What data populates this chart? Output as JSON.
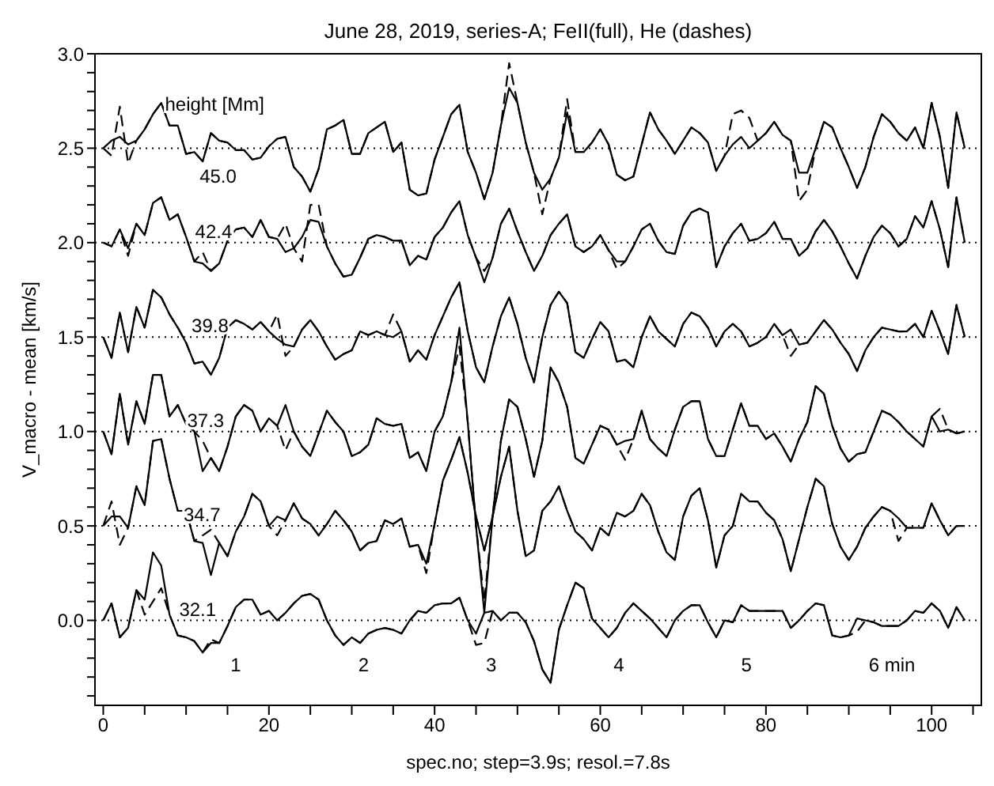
{
  "chart_data": {
    "type": "line",
    "title": "June 28, 2019, series-A; FeII(full), He (dashes)",
    "xlabel": "spec.no; step=3.9s; resol.=7.8s",
    "ylabel": "V_macro - mean [km/s]",
    "xlim": [
      -1,
      106
    ],
    "ylim": [
      -0.45,
      3.0
    ],
    "xticks": [
      0,
      {
        "value": 5,
        "label": null
      },
      {
        "value": 10,
        "label": null
      },
      {
        "value": 15,
        "label": null
      },
      20,
      {
        "value": 25,
        "label": null
      },
      {
        "value": 30,
        "label": null
      },
      {
        "value": 35,
        "label": null
      },
      40,
      {
        "value": 45,
        "label": null
      },
      {
        "value": 50,
        "label": null
      },
      {
        "value": 55,
        "label": null
      },
      60,
      {
        "value": 65,
        "label": null
      },
      {
        "value": 70,
        "label": null
      },
      {
        "value": 75,
        "label": null
      },
      80,
      {
        "value": 85,
        "label": null
      },
      {
        "value": 90,
        "label": null
      },
      {
        "value": 95,
        "label": null
      },
      100,
      {
        "value": 105,
        "label": null
      }
    ],
    "yticks": [
      {
        "value": -0.4,
        "label": null
      },
      {
        "value": -0.3,
        "label": null
      },
      {
        "value": -0.2,
        "label": null
      },
      {
        "value": -0.1,
        "label": null
      },
      {
        "value": 0,
        "label": "0.0"
      },
      {
        "value": 0.1,
        "label": null
      },
      {
        "value": 0.2,
        "label": null
      },
      {
        "value": 0.3,
        "label": null
      },
      {
        "value": 0.4,
        "label": null
      },
      {
        "value": 0.5,
        "label": "0.5"
      },
      {
        "value": 0.6,
        "label": null
      },
      {
        "value": 0.7,
        "label": null
      },
      {
        "value": 0.8,
        "label": null
      },
      {
        "value": 0.9,
        "label": null
      },
      {
        "value": 1,
        "label": "1.0"
      },
      {
        "value": 1.1,
        "label": null
      },
      {
        "value": 1.2,
        "label": null
      },
      {
        "value": 1.3,
        "label": null
      },
      {
        "value": 1.4,
        "label": null
      },
      {
        "value": 1.5,
        "label": "1.5"
      },
      {
        "value": 1.6,
        "label": null
      },
      {
        "value": 1.7,
        "label": null
      },
      {
        "value": 1.8,
        "label": null
      },
      {
        "value": 1.9,
        "label": null
      },
      {
        "value": 2,
        "label": "2.0"
      },
      {
        "value": 2.1,
        "label": null
      },
      {
        "value": 2.2,
        "label": null
      },
      {
        "value": 2.3,
        "label": null
      },
      {
        "value": 2.4,
        "label": null
      },
      {
        "value": 2.5,
        "label": "2.5"
      },
      {
        "value": 2.6,
        "label": null
      },
      {
        "value": 2.7,
        "label": null
      },
      {
        "value": 2.8,
        "label": null
      },
      {
        "value": 2.9,
        "label": null
      },
      {
        "value": 3,
        "label": "3.0"
      }
    ],
    "x": [
      0,
      1,
      2,
      3,
      4,
      5,
      6,
      7,
      8,
      9,
      10,
      11,
      12,
      13,
      14,
      15,
      16,
      17,
      18,
      19,
      20,
      21,
      22,
      23,
      24,
      25,
      26,
      27,
      28,
      29,
      30,
      31,
      32,
      33,
      34,
      35,
      36,
      37,
      38,
      39,
      40,
      41,
      42,
      43,
      44,
      45,
      46,
      47,
      48,
      49,
      50,
      51,
      52,
      53,
      54,
      55,
      56,
      57,
      58,
      59,
      60,
      61,
      62,
      63,
      64,
      65,
      66,
      67,
      68,
      69,
      70,
      71,
      72,
      73,
      74,
      75,
      76,
      77,
      78,
      79,
      80,
      81,
      82,
      83,
      84,
      85,
      86,
      87,
      88,
      89,
      90,
      91,
      92,
      93,
      94,
      95,
      96,
      97,
      98,
      99,
      100,
      101,
      102,
      103,
      104
    ],
    "series": [
      {
        "color": "#000000",
        "line_style": "solid",
        "values": [
          2.5,
          2.54,
          2.56,
          2.52,
          2.54,
          2.6,
          2.68,
          2.74,
          2.62,
          2.62,
          2.47,
          2.48,
          2.43,
          2.58,
          2.54,
          2.53,
          2.49,
          2.49,
          2.44,
          2.45,
          2.51,
          2.55,
          2.56,
          2.4,
          2.35,
          2.27,
          2.39,
          2.6,
          2.62,
          2.65,
          2.47,
          2.47,
          2.58,
          2.61,
          2.64,
          2.48,
          2.53,
          2.28,
          2.25,
          2.26,
          2.44,
          2.56,
          2.68,
          2.73,
          2.48,
          2.37,
          2.23,
          2.37,
          2.62,
          2.82,
          2.74,
          2.53,
          2.37,
          2.28,
          2.34,
          2.45,
          2.69,
          2.48,
          2.48,
          2.53,
          2.6,
          2.52,
          2.36,
          2.33,
          2.35,
          2.52,
          2.69,
          2.6,
          2.54,
          2.47,
          2.54,
          2.61,
          2.58,
          2.53,
          2.38,
          2.46,
          2.52,
          2.56,
          2.5,
          2.54,
          2.58,
          2.64,
          2.57,
          2.54,
          2.37,
          2.37,
          2.5,
          2.64,
          2.61,
          2.5,
          2.4,
          2.29,
          2.4,
          2.56,
          2.68,
          2.64,
          2.58,
          2.54,
          2.61,
          2.5,
          2.74,
          2.56,
          2.29,
          2.69,
          2.5
        ]
      },
      {
        "color": "#000000",
        "line_style": "dashed",
        "values": [
          2.5,
          2.46,
          2.72,
          2.42,
          2.54,
          2.6,
          2.68,
          2.74,
          2.62,
          2.62,
          2.47,
          2.48,
          2.43,
          2.58,
          2.54,
          2.53,
          2.49,
          2.49,
          2.44,
          2.45,
          2.51,
          2.55,
          2.56,
          2.4,
          2.35,
          2.27,
          2.39,
          2.6,
          2.62,
          2.65,
          2.47,
          2.47,
          2.58,
          2.61,
          2.64,
          2.48,
          2.53,
          2.28,
          2.25,
          2.26,
          2.44,
          2.56,
          2.68,
          2.73,
          2.48,
          2.37,
          2.23,
          2.37,
          2.62,
          2.95,
          2.74,
          2.53,
          2.37,
          2.15,
          2.34,
          2.45,
          2.76,
          2.48,
          2.48,
          2.53,
          2.6,
          2.52,
          2.36,
          2.33,
          2.35,
          2.52,
          2.69,
          2.6,
          2.54,
          2.47,
          2.54,
          2.61,
          2.58,
          2.53,
          2.38,
          2.46,
          2.68,
          2.7,
          2.66,
          2.54,
          2.58,
          2.64,
          2.57,
          2.54,
          2.22,
          2.28,
          2.5,
          2.64,
          2.61,
          2.5,
          2.4,
          2.29,
          2.4,
          2.56,
          2.68,
          2.64,
          2.58,
          2.54,
          2.61,
          2.5,
          2.74,
          2.56,
          2.29,
          2.69,
          2.5
        ]
      },
      {
        "color": "#000000",
        "line_style": "solid",
        "values": [
          2.0,
          1.98,
          2.07,
          1.97,
          2.1,
          2.04,
          2.21,
          2.24,
          2.12,
          2.15,
          2.03,
          1.9,
          1.89,
          1.85,
          1.89,
          2.01,
          2.07,
          2.08,
          2.03,
          2.12,
          2.03,
          2.02,
          1.95,
          1.97,
          2.03,
          2.12,
          2.11,
          1.98,
          1.89,
          1.82,
          1.83,
          1.92,
          2.02,
          2.04,
          2.03,
          2.01,
          2.01,
          1.88,
          1.93,
          1.91,
          2.03,
          2.08,
          2.16,
          2.22,
          2.04,
          1.92,
          1.79,
          1.92,
          2.1,
          2.18,
          2.06,
          1.95,
          1.85,
          1.93,
          2.04,
          2.1,
          2.15,
          1.98,
          1.95,
          1.98,
          2.04,
          1.96,
          1.9,
          1.9,
          1.98,
          2.07,
          2.1,
          2.01,
          1.95,
          1.94,
          2.09,
          2.16,
          2.18,
          2.16,
          1.87,
          1.98,
          2.05,
          2.1,
          2.01,
          2.02,
          2.05,
          2.11,
          2.02,
          2.02,
          1.93,
          1.97,
          2.06,
          2.12,
          2.06,
          1.98,
          1.89,
          1.81,
          1.93,
          2.03,
          2.09,
          2.05,
          1.98,
          2.02,
          2.14,
          2.08,
          2.22,
          2.07,
          1.87,
          2.24,
          2.0
        ]
      },
      {
        "color": "#000000",
        "line_style": "dashed",
        "values": [
          2.0,
          1.98,
          2.07,
          1.93,
          2.1,
          2.04,
          2.21,
          2.24,
          2.12,
          2.15,
          2.03,
          1.9,
          1.95,
          1.85,
          1.89,
          2.01,
          2.07,
          2.08,
          2.03,
          2.12,
          2.03,
          2.02,
          2.1,
          1.97,
          1.9,
          2.2,
          2.2,
          1.98,
          1.89,
          1.82,
          1.83,
          1.92,
          2.02,
          2.04,
          2.03,
          2.01,
          2.01,
          1.88,
          1.93,
          1.91,
          2.03,
          2.08,
          2.16,
          2.22,
          2.04,
          1.92,
          1.85,
          1.92,
          2.1,
          2.18,
          2.06,
          1.95,
          1.85,
          1.93,
          2.04,
          2.1,
          2.15,
          1.98,
          1.95,
          1.98,
          2.04,
          1.96,
          1.86,
          1.9,
          1.98,
          2.07,
          2.1,
          2.01,
          1.95,
          1.94,
          2.09,
          2.16,
          2.18,
          2.16,
          1.87,
          1.98,
          2.05,
          2.1,
          2.01,
          2.02,
          2.05,
          2.11,
          2.02,
          2.02,
          1.93,
          1.97,
          2.06,
          2.12,
          2.06,
          1.98,
          1.89,
          1.81,
          1.93,
          2.03,
          2.09,
          2.05,
          1.98,
          2.02,
          2.14,
          2.08,
          2.22,
          2.07,
          1.87,
          2.24,
          2.0
        ]
      },
      {
        "color": "#000000",
        "line_style": "solid",
        "values": [
          1.5,
          1.39,
          1.63,
          1.42,
          1.66,
          1.55,
          1.75,
          1.71,
          1.62,
          1.55,
          1.47,
          1.36,
          1.37,
          1.3,
          1.39,
          1.55,
          1.59,
          1.57,
          1.54,
          1.58,
          1.53,
          1.49,
          1.46,
          1.45,
          1.54,
          1.59,
          1.53,
          1.45,
          1.38,
          1.41,
          1.43,
          1.53,
          1.51,
          1.53,
          1.51,
          1.5,
          1.53,
          1.37,
          1.43,
          1.38,
          1.51,
          1.61,
          1.71,
          1.79,
          1.53,
          1.34,
          1.26,
          1.45,
          1.61,
          1.71,
          1.57,
          1.39,
          1.26,
          1.5,
          1.67,
          1.74,
          1.68,
          1.42,
          1.39,
          1.49,
          1.58,
          1.53,
          1.37,
          1.38,
          1.34,
          1.5,
          1.61,
          1.53,
          1.49,
          1.45,
          1.57,
          1.63,
          1.61,
          1.55,
          1.45,
          1.53,
          1.57,
          1.53,
          1.45,
          1.47,
          1.5,
          1.57,
          1.51,
          1.54,
          1.46,
          1.47,
          1.53,
          1.59,
          1.54,
          1.47,
          1.41,
          1.32,
          1.43,
          1.5,
          1.55,
          1.54,
          1.53,
          1.53,
          1.57,
          1.5,
          1.64,
          1.53,
          1.41,
          1.67,
          1.5
        ]
      },
      {
        "color": "#000000",
        "line_style": "dashed",
        "values": [
          1.5,
          1.39,
          1.63,
          1.42,
          1.66,
          1.55,
          1.75,
          1.71,
          1.62,
          1.55,
          1.47,
          1.36,
          1.37,
          1.3,
          1.39,
          1.55,
          1.59,
          1.57,
          1.54,
          1.58,
          1.53,
          1.62,
          1.4,
          1.45,
          1.54,
          1.59,
          1.53,
          1.45,
          1.38,
          1.41,
          1.43,
          1.53,
          1.51,
          1.53,
          1.51,
          1.62,
          1.53,
          1.37,
          1.43,
          1.38,
          1.51,
          1.61,
          1.71,
          1.79,
          1.53,
          1.34,
          1.26,
          1.45,
          1.61,
          1.71,
          1.57,
          1.39,
          1.26,
          1.5,
          1.67,
          1.74,
          1.68,
          1.42,
          1.39,
          1.49,
          1.58,
          1.53,
          1.37,
          1.38,
          1.34,
          1.5,
          1.61,
          1.53,
          1.49,
          1.45,
          1.57,
          1.63,
          1.61,
          1.55,
          1.45,
          1.53,
          1.57,
          1.53,
          1.45,
          1.47,
          1.5,
          1.57,
          1.51,
          1.4,
          1.46,
          1.47,
          1.53,
          1.59,
          1.54,
          1.47,
          1.41,
          1.32,
          1.43,
          1.5,
          1.55,
          1.54,
          1.53,
          1.53,
          1.57,
          1.5,
          1.64,
          1.53,
          1.41,
          1.67,
          1.5
        ]
      },
      {
        "color": "#000000",
        "line_style": "solid",
        "values": [
          1.0,
          0.88,
          1.2,
          0.93,
          1.16,
          1.04,
          1.3,
          1.3,
          1.08,
          1.14,
          1.04,
          1.0,
          0.79,
          0.86,
          0.79,
          0.92,
          1.08,
          1.14,
          1.11,
          1.0,
          1.07,
          1.03,
          1.14,
          1.0,
          0.92,
          0.87,
          0.99,
          1.11,
          1.05,
          1.0,
          0.87,
          0.89,
          0.93,
          1.07,
          1.04,
          1.03,
          1.04,
          0.86,
          0.89,
          0.79,
          1.0,
          1.08,
          1.26,
          1.55,
          1.05,
          0.5,
          0.04,
          0.55,
          0.95,
          1.17,
          1.13,
          0.96,
          0.76,
          0.95,
          1.34,
          1.26,
          1.13,
          0.86,
          0.83,
          0.93,
          1.03,
          1.01,
          0.93,
          0.95,
          0.96,
          1.11,
          0.96,
          0.91,
          0.87,
          1.01,
          1.13,
          1.16,
          1.16,
          0.96,
          0.87,
          0.87,
          1.01,
          1.15,
          1.03,
          1.03,
          0.96,
          0.99,
          0.92,
          0.84,
          0.96,
          1.05,
          1.24,
          1.2,
          1.03,
          0.91,
          0.84,
          0.88,
          0.89,
          1.0,
          1.11,
          1.09,
          1.05,
          1.0,
          0.96,
          0.92,
          1.08,
          1.0,
          1.01,
          0.99,
          1.0
        ]
      },
      {
        "color": "#000000",
        "line_style": "dashed",
        "values": [
          1.0,
          0.88,
          1.2,
          0.93,
          1.16,
          1.04,
          1.3,
          1.3,
          1.08,
          1.14,
          1.04,
          1.0,
          0.95,
          0.86,
          0.79,
          0.92,
          1.08,
          1.14,
          1.11,
          1.0,
          1.07,
          1.03,
          0.9,
          1.0,
          0.92,
          0.87,
          0.99,
          1.11,
          1.05,
          1.0,
          0.87,
          0.89,
          0.93,
          1.07,
          1.04,
          1.03,
          1.04,
          0.86,
          0.89,
          0.79,
          1.0,
          1.08,
          1.26,
          1.45,
          1.05,
          0.5,
          0.1,
          0.55,
          0.95,
          1.17,
          1.13,
          0.96,
          0.76,
          0.95,
          1.34,
          1.26,
          1.13,
          0.86,
          0.83,
          0.93,
          1.03,
          1.01,
          0.93,
          0.85,
          0.96,
          1.11,
          0.96,
          0.91,
          0.87,
          1.01,
          1.13,
          1.16,
          1.16,
          0.96,
          0.87,
          0.87,
          1.01,
          1.15,
          1.03,
          1.03,
          0.96,
          0.99,
          0.92,
          0.84,
          0.96,
          1.05,
          1.24,
          1.2,
          1.03,
          0.91,
          0.84,
          0.88,
          0.89,
          1.0,
          1.11,
          1.09,
          1.05,
          1.0,
          0.96,
          0.92,
          1.08,
          1.12,
          1.01,
          0.99,
          1.0
        ]
      },
      {
        "color": "#000000",
        "line_style": "solid",
        "values": [
          0.5,
          0.55,
          0.55,
          0.49,
          0.71,
          0.61,
          0.95,
          0.96,
          0.75,
          0.58,
          0.58,
          0.42,
          0.41,
          0.24,
          0.41,
          0.34,
          0.47,
          0.55,
          0.67,
          0.63,
          0.5,
          0.55,
          0.53,
          0.62,
          0.54,
          0.51,
          0.45,
          0.51,
          0.58,
          0.53,
          0.47,
          0.37,
          0.41,
          0.42,
          0.53,
          0.51,
          0.54,
          0.39,
          0.4,
          0.3,
          0.51,
          0.74,
          0.85,
          0.97,
          0.78,
          0.55,
          0.37,
          0.55,
          0.76,
          0.92,
          0.58,
          0.34,
          0.37,
          0.58,
          0.63,
          0.71,
          0.58,
          0.47,
          0.43,
          0.37,
          0.49,
          0.45,
          0.57,
          0.55,
          0.58,
          0.67,
          0.61,
          0.47,
          0.36,
          0.32,
          0.55,
          0.66,
          0.7,
          0.53,
          0.28,
          0.45,
          0.5,
          0.67,
          0.63,
          0.63,
          0.57,
          0.53,
          0.43,
          0.26,
          0.43,
          0.6,
          0.75,
          0.71,
          0.51,
          0.39,
          0.32,
          0.39,
          0.49,
          0.55,
          0.6,
          0.58,
          0.54,
          0.49,
          0.49,
          0.49,
          0.62,
          0.53,
          0.45,
          0.5,
          0.5
        ]
      },
      {
        "color": "#000000",
        "line_style": "dashed",
        "values": [
          0.5,
          0.63,
          0.4,
          0.49,
          0.71,
          0.61,
          0.95,
          0.96,
          0.75,
          0.58,
          0.58,
          0.42,
          0.45,
          0.48,
          0.41,
          0.34,
          0.47,
          0.55,
          0.67,
          0.63,
          0.5,
          0.45,
          0.53,
          0.62,
          0.54,
          0.51,
          0.45,
          0.51,
          0.58,
          0.53,
          0.47,
          0.37,
          0.41,
          0.42,
          0.53,
          0.51,
          0.54,
          0.39,
          0.4,
          0.25,
          0.51,
          0.74,
          0.85,
          0.97,
          0.78,
          0.55,
          0.37,
          0.55,
          0.76,
          0.92,
          0.58,
          0.34,
          0.37,
          0.58,
          0.63,
          0.71,
          0.58,
          0.47,
          0.43,
          0.37,
          0.49,
          0.45,
          0.57,
          0.55,
          0.58,
          0.67,
          0.61,
          0.47,
          0.36,
          0.32,
          0.55,
          0.66,
          0.7,
          0.53,
          0.28,
          0.45,
          0.5,
          0.67,
          0.63,
          0.63,
          0.57,
          0.53,
          0.43,
          0.26,
          0.43,
          0.6,
          0.75,
          0.71,
          0.51,
          0.39,
          0.32,
          0.39,
          0.49,
          0.55,
          0.6,
          0.58,
          0.42,
          0.49,
          0.49,
          0.49,
          0.62,
          0.53,
          0.45,
          0.5,
          0.5
        ]
      },
      {
        "color": "#000000",
        "line_style": "solid",
        "values": [
          0.0,
          0.09,
          -0.09,
          -0.04,
          0.16,
          0.11,
          0.36,
          0.29,
          0.03,
          -0.08,
          -0.09,
          -0.11,
          -0.17,
          -0.12,
          -0.12,
          -0.03,
          0.07,
          0.11,
          0.11,
          0.03,
          0.05,
          0.0,
          0.04,
          0.09,
          0.13,
          0.14,
          0.11,
          0.0,
          -0.08,
          -0.13,
          -0.09,
          -0.12,
          -0.07,
          -0.05,
          -0.04,
          -0.05,
          -0.07,
          0.0,
          0.05,
          0.04,
          0.08,
          0.09,
          0.09,
          0.12,
          0.0,
          -0.07,
          0.04,
          0.05,
          0.0,
          0.04,
          0.04,
          -0.01,
          -0.11,
          -0.26,
          -0.33,
          -0.05,
          0.08,
          0.2,
          0.17,
          0.01,
          -0.04,
          -0.09,
          -0.04,
          0.04,
          0.09,
          0.05,
          0.01,
          -0.04,
          -0.09,
          0.0,
          0.05,
          0.08,
          0.08,
          -0.01,
          -0.09,
          0.0,
          -0.01,
          0.08,
          0.05,
          0.05,
          0.05,
          0.05,
          0.05,
          -0.04,
          0.0,
          0.05,
          0.09,
          0.08,
          -0.08,
          -0.09,
          -0.08,
          0.01,
          0.0,
          -0.01,
          -0.03,
          -0.03,
          -0.03,
          0.0,
          0.05,
          0.04,
          0.09,
          0.05,
          -0.04,
          0.07,
          0.0
        ]
      },
      {
        "color": "#000000",
        "line_style": "dashed",
        "values": [
          0.0,
          0.09,
          -0.09,
          -0.04,
          0.16,
          0.03,
          0.1,
          0.17,
          0.03,
          -0.08,
          -0.09,
          -0.11,
          -0.17,
          -0.1,
          -0.12,
          -0.03,
          0.07,
          0.11,
          0.11,
          0.03,
          0.05,
          0.0,
          0.04,
          0.09,
          0.13,
          0.14,
          0.11,
          0.0,
          -0.08,
          -0.13,
          -0.09,
          -0.12,
          -0.07,
          -0.05,
          -0.04,
          -0.05,
          -0.07,
          0.0,
          0.05,
          0.04,
          0.08,
          0.09,
          0.09,
          0.12,
          0.0,
          -0.13,
          -0.12,
          0.05,
          0.0,
          0.04,
          0.04,
          -0.01,
          -0.11,
          -0.26,
          -0.33,
          -0.05,
          0.08,
          0.2,
          0.17,
          0.01,
          -0.04,
          -0.09,
          -0.04,
          0.04,
          0.09,
          0.05,
          0.01,
          -0.04,
          -0.09,
          0.0,
          0.05,
          0.08,
          0.08,
          -0.01,
          -0.09,
          0.0,
          -0.01,
          0.08,
          0.05,
          0.05,
          0.05,
          0.05,
          0.05,
          -0.04,
          0.0,
          0.05,
          0.09,
          0.08,
          -0.08,
          -0.09,
          -0.08,
          -0.06,
          0.0,
          -0.01,
          -0.03,
          -0.03,
          -0.03,
          0.0,
          0.05,
          0.04,
          0.09,
          0.05,
          -0.04,
          0.07,
          0.0
        ]
      }
    ],
    "ref_lines": [
      {
        "axis": "y",
        "value": 0,
        "color": "#000000",
        "line_style": "dotted"
      },
      {
        "axis": "y",
        "value": 0.5,
        "color": "#000000",
        "line_style": "dotted"
      },
      {
        "axis": "y",
        "value": 1,
        "color": "#000000",
        "line_style": "dotted"
      },
      {
        "axis": "y",
        "value": 1.5,
        "color": "#000000",
        "line_style": "dotted"
      },
      {
        "axis": "y",
        "value": 2,
        "color": "#000000",
        "line_style": "dotted"
      },
      {
        "axis": "y",
        "value": 2.5,
        "color": "#000000",
        "line_style": "dotted"
      }
    ],
    "annotations": [
      "height [Mm]",
      "45.0",
      "42.4",
      "39.8",
      "37.3",
      "34.7",
      "32.1",
      "1",
      "2",
      "3",
      "4",
      "5",
      "6 min"
    ]
  }
}
